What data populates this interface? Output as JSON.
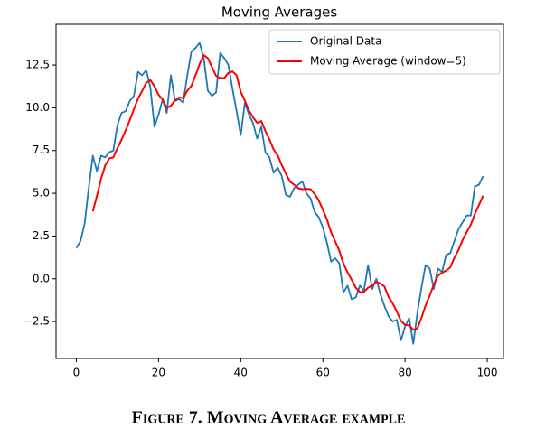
{
  "chart_data": {
    "type": "line",
    "title": "Moving Averages",
    "caption": "Figure 7. Moving Average example",
    "x": [
      0,
      1,
      2,
      3,
      4,
      5,
      6,
      7,
      8,
      9,
      10,
      11,
      12,
      13,
      14,
      15,
      16,
      17,
      18,
      19,
      20,
      21,
      22,
      23,
      24,
      25,
      26,
      27,
      28,
      29,
      30,
      31,
      32,
      33,
      34,
      35,
      36,
      37,
      38,
      39,
      40,
      41,
      42,
      43,
      44,
      45,
      46,
      47,
      48,
      49,
      50,
      51,
      52,
      53,
      54,
      55,
      56,
      57,
      58,
      59,
      60,
      61,
      62,
      63,
      64,
      65,
      66,
      67,
      68,
      69,
      70,
      71,
      72,
      73,
      74,
      75,
      76,
      77,
      78,
      79,
      80,
      81,
      82,
      83,
      84,
      85,
      86,
      87,
      88,
      89,
      90,
      91,
      92,
      93,
      94,
      95,
      96,
      97,
      98,
      99
    ],
    "series": [
      {
        "name": "Original Data",
        "color": "#1f77b4",
        "values": [
          1.8,
          2.2,
          3.2,
          5.3,
          7.2,
          6.3,
          7.2,
          7.1,
          7.4,
          7.5,
          9.0,
          9.7,
          9.8,
          10.4,
          10.7,
          12.1,
          11.9,
          12.2,
          11.2,
          8.9,
          9.6,
          10.5,
          9.7,
          11.9,
          10.4,
          10.5,
          10.3,
          11.9,
          13.3,
          13.5,
          13.8,
          12.9,
          11.0,
          10.7,
          10.9,
          13.2,
          12.9,
          12.5,
          11.1,
          9.8,
          8.4,
          10.3,
          9.6,
          9.1,
          8.2,
          8.9,
          7.4,
          7.1,
          6.2,
          6.5,
          6.0,
          4.9,
          4.8,
          5.3,
          5.5,
          5.7,
          5.0,
          4.7,
          3.9,
          3.6,
          3.0,
          2.1,
          1.0,
          1.2,
          0.9,
          -0.8,
          -0.4,
          -1.2,
          -1.1,
          -0.4,
          -0.7,
          0.8,
          -0.6,
          0.0,
          -0.9,
          -1.6,
          -2.2,
          -2.5,
          -2.4,
          -3.6,
          -2.8,
          -2.3,
          -3.8,
          -2.0,
          -0.5,
          0.8,
          0.6,
          -0.6,
          0.6,
          0.4,
          1.4,
          1.5,
          2.2,
          2.9,
          3.3,
          3.7,
          3.7,
          5.4,
          5.5,
          6.0
        ]
      },
      {
        "name": "Moving Average (window=5)",
        "color": "#ff0000",
        "values": [
          null,
          null,
          null,
          null,
          3.94,
          4.84,
          5.84,
          6.62,
          7.04,
          7.1,
          7.64,
          8.14,
          8.68,
          9.28,
          9.92,
          10.54,
          10.98,
          11.46,
          11.62,
          11.26,
          10.76,
          10.48,
          9.98,
          10.12,
          10.42,
          10.6,
          10.56,
          11.0,
          11.28,
          11.9,
          12.56,
          13.08,
          12.9,
          12.38,
          11.86,
          11.74,
          11.74,
          12.04,
          12.12,
          11.9,
          10.94,
          10.42,
          9.84,
          9.44,
          9.12,
          9.22,
          8.64,
          8.14,
          7.56,
          7.22,
          6.64,
          6.14,
          5.68,
          5.5,
          5.3,
          5.24,
          5.26,
          5.24,
          4.96,
          4.58,
          4.04,
          3.46,
          2.72,
          2.18,
          1.64,
          0.88,
          0.38,
          -0.06,
          -0.52,
          -0.78,
          -0.76,
          -0.52,
          -0.4,
          -0.18,
          -0.28,
          -0.46,
          -1.06,
          -1.44,
          -1.92,
          -2.46,
          -2.7,
          -2.72,
          -2.98,
          -2.9,
          -2.28,
          -1.56,
          -0.98,
          -0.34,
          0.18,
          0.36,
          0.48,
          0.66,
          1.22,
          1.68,
          2.26,
          2.72,
          3.16,
          3.8,
          4.32,
          4.86
        ]
      }
    ],
    "xlim": [
      -4.95,
      103.95
    ],
    "ylim": [
      -4.66,
      14.88
    ],
    "xticks": [
      0,
      20,
      40,
      60,
      80,
      100
    ],
    "yticks": [
      {
        "value": -2.5,
        "label": "−2.5"
      },
      {
        "value": 0,
        "label": "0.0"
      },
      2.5,
      {
        "value": 5,
        "label": "5.0"
      },
      7.5,
      {
        "value": 10,
        "label": "10.0"
      },
      12.5
    ],
    "legend": "upper right",
    "grid": false
  }
}
